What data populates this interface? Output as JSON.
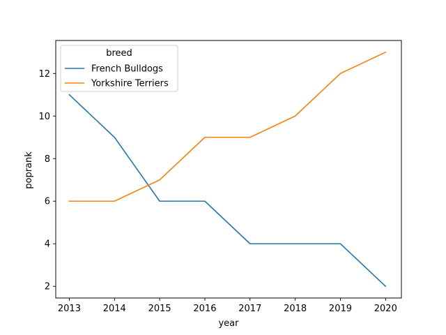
{
  "chart_data": {
    "type": "line",
    "xlabel": "year",
    "ylabel": "poprank",
    "x": [
      2013,
      2014,
      2015,
      2016,
      2017,
      2018,
      2019,
      2020
    ],
    "xlim": [
      2012.7,
      2020.35
    ],
    "ylim": [
      1.45,
      13.55
    ],
    "xticks": [
      2013,
      2014,
      2015,
      2016,
      2017,
      2018,
      2019,
      2020
    ],
    "yticks": [
      2,
      4,
      6,
      8,
      10,
      12
    ],
    "legend": {
      "title": "breed",
      "position": "upper-left"
    },
    "grid": false,
    "series": [
      {
        "name": "French Bulldogs",
        "color": "#1f77b4",
        "values": [
          11,
          9,
          6,
          6,
          4,
          4,
          4,
          2
        ]
      },
      {
        "name": "Yorkshire Terriers",
        "color": "#ff7f0e",
        "values": [
          6,
          6,
          7,
          9,
          9,
          10,
          12,
          13
        ]
      }
    ]
  }
}
